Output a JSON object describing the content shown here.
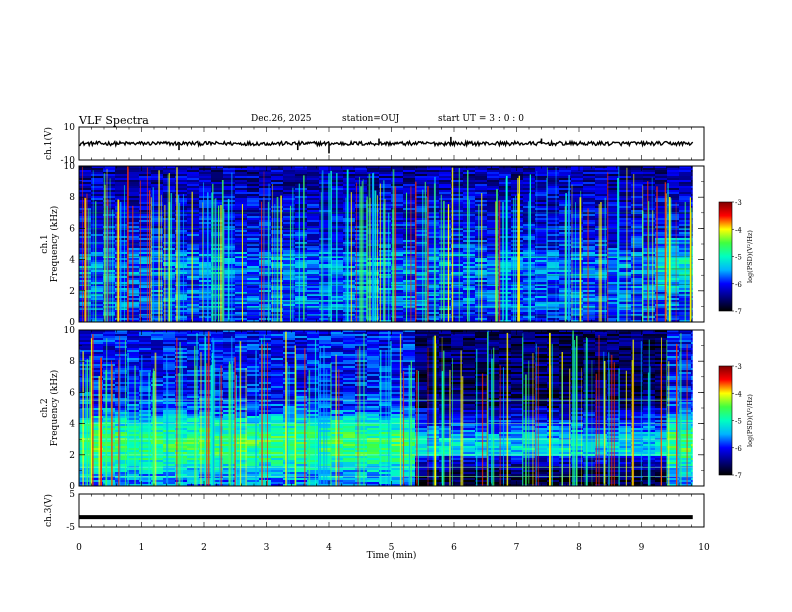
{
  "header": {
    "title": "VLF Spectra",
    "date": "Dec.26, 2025",
    "station": "station=OUJ",
    "start": "start  UT =   3 : 0  : 0"
  },
  "chart_data": [
    {
      "type": "line",
      "panel": "ch1-waveform",
      "ylabel": "ch.1(V)",
      "ylim": [
        -10,
        10
      ],
      "yticks": [
        "10",
        "-10"
      ],
      "baseline": 0,
      "spikes": [
        {
          "t": 1.6,
          "v": -4
        },
        {
          "t": 3.5,
          "v": -4
        },
        {
          "t": 4.0,
          "v": -6
        },
        {
          "t": 4.8,
          "v": 3
        },
        {
          "t": 5.95,
          "v": 4
        },
        {
          "t": 7.4,
          "v": 3
        }
      ]
    },
    {
      "type": "heatmap",
      "panel": "ch1-spectrogram",
      "ylabel": "ch.1 Frequency (kHz)",
      "ylim": [
        0,
        10
      ],
      "yticks": [
        "0",
        "2",
        "4",
        "6",
        "8",
        "10"
      ],
      "colorbar": {
        "label": "log(PSD)(V²/Hz)",
        "range": [
          -7,
          -3
        ],
        "ticks": [
          "-3",
          "-4",
          "-5",
          "-6",
          "-7"
        ]
      }
    },
    {
      "type": "heatmap",
      "panel": "ch2-spectrogram",
      "ylabel": "ch.2 Frequency (kHz)",
      "ylim": [
        0,
        10
      ],
      "yticks": [
        "0",
        "2",
        "4",
        "6",
        "8",
        "10"
      ],
      "colorbar": {
        "label": "log(PSD)(V²/Hz)",
        "range": [
          -7,
          -3
        ],
        "ticks": [
          "-3",
          "-4",
          "-5",
          "-6",
          "-7"
        ]
      }
    },
    {
      "type": "line",
      "panel": "ch3-waveform",
      "ylabel": "ch.3(V)",
      "ylim": [
        -5,
        5
      ],
      "yticks": [
        "5",
        "-5"
      ],
      "value": -2
    }
  ],
  "xaxis": {
    "label": "Time  (min)",
    "range": [
      0,
      10
    ],
    "ticks": [
      "0",
      "1",
      "2",
      "3",
      "4",
      "5",
      "6",
      "7",
      "8",
      "9",
      "10"
    ]
  },
  "colormap": [
    "#000000",
    "#000080",
    "#0000ff",
    "#00b4ff",
    "#00ffc0",
    "#40ff40",
    "#ffff00",
    "#ff0000",
    "#800000"
  ]
}
